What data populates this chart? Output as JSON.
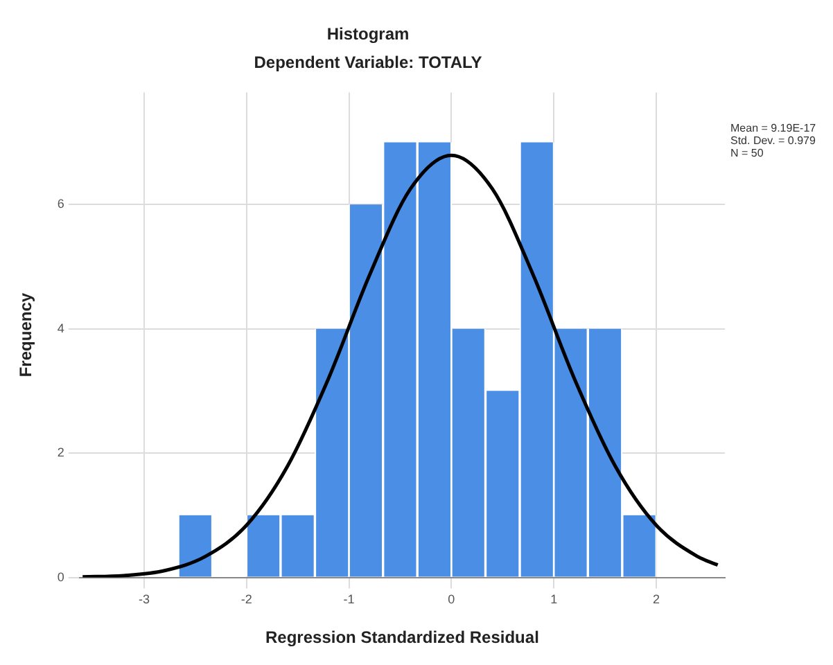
{
  "chart_data": {
    "type": "histogram",
    "title": "Histogram",
    "subtitle": "Dependent Variable: TOTALY",
    "xlabel": "Regression Standardized Residual",
    "ylabel": "Frequency",
    "bins": [
      -2.67,
      -2.33,
      -2,
      -1.67,
      -1.33,
      -1,
      -0.67,
      -0.33,
      0,
      0.33,
      0.67,
      1,
      1.33,
      1.67,
      2
    ],
    "values": [
      1,
      0,
      1,
      1,
      4,
      6,
      7,
      7,
      4,
      3,
      7,
      4,
      4,
      1
    ],
    "color": "#4a8ee6",
    "series": [
      {
        "type": "line",
        "color": "#000000",
        "x": [
          -3.6,
          -3.2,
          -2.8,
          -2.4,
          -2.0,
          -1.6,
          -1.2,
          -0.8,
          -0.4,
          0,
          0.4,
          0.8,
          1.2,
          1.6,
          2.0,
          2.4,
          2.6
        ],
        "values": [
          0.01,
          0.03,
          0.11,
          0.34,
          0.84,
          1.79,
          3.2,
          4.86,
          6.25,
          6.79,
          6.25,
          4.86,
          3.2,
          1.79,
          0.84,
          0.34,
          0.2
        ]
      }
    ],
    "xlim": [
      -3.63,
      2.67
    ],
    "xticks": [
      -3,
      -2,
      -1,
      0,
      1,
      2
    ],
    "ylim": [
      0,
      7.8
    ],
    "yticks": [
      0,
      2,
      4,
      6
    ],
    "grid": true,
    "legend": false,
    "marker": "none",
    "annotations": [
      "Mean = 9.19E-17",
      "Std. Dev. = 0.979",
      "N = 50"
    ]
  }
}
